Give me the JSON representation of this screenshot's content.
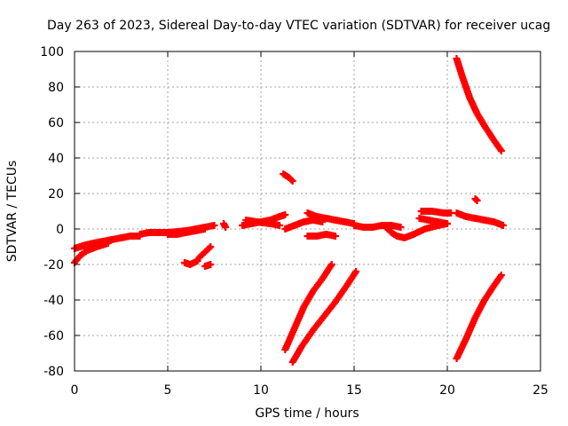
{
  "chart_data": {
    "type": "scatter",
    "title": "Day 263 of 2023, Sidereal Day-to-day VTEC variation (SDTVAR) for receiver ucag",
    "xlabel": "GPS time / hours",
    "ylabel": "SDTVAR / TECUs",
    "xlim": [
      0,
      25
    ],
    "ylim": [
      -80,
      100
    ],
    "xticks": [
      "0",
      "5",
      "10",
      "15",
      "20",
      "25"
    ],
    "yticks": [
      "-80",
      "-60",
      "-40",
      "-20",
      "0",
      "20",
      "40",
      "60",
      "80",
      "100"
    ],
    "grid": true,
    "marker": "+",
    "color": "#ff0000",
    "series": [
      {
        "x": [
          0.0,
          0.3,
          0.6,
          1.0,
          1.5,
          2.0,
          2.5,
          3.0,
          3.5
        ],
        "y": [
          -11,
          -10,
          -9,
          -8,
          -7,
          -6,
          -5,
          -4,
          -4
        ]
      },
      {
        "x": [
          0.0,
          0.3,
          0.7,
          1.2,
          1.8
        ],
        "y": [
          -19,
          -15,
          -12,
          -10,
          -8
        ]
      },
      {
        "x": [
          3.5,
          4.0,
          5.0,
          6.0,
          6.5,
          7.0,
          7.5
        ],
        "y": [
          -3,
          -2,
          -2,
          -1,
          0,
          1,
          2
        ]
      },
      {
        "x": [
          5.0,
          5.5,
          6.0,
          6.5,
          7.0
        ],
        "y": [
          -3,
          -3,
          -2,
          -1,
          0
        ]
      },
      {
        "x": [
          8.0,
          8.1
        ],
        "y": [
          3,
          1
        ]
      },
      {
        "x": [
          9.0,
          9.5,
          10.0,
          10.5,
          11.0,
          11.3
        ],
        "y": [
          2,
          3,
          4,
          5,
          7,
          8
        ]
      },
      {
        "x": [
          9.2,
          9.8,
          10.5,
          11.0
        ],
        "y": [
          5,
          4,
          3,
          2
        ]
      },
      {
        "x": [
          11.2,
          11.5,
          11.7
        ],
        "y": [
          31,
          29,
          27
        ]
      },
      {
        "x": [
          11.3,
          11.8,
          12.3,
          12.8,
          13.3
        ],
        "y": [
          0,
          2,
          4,
          5,
          4
        ]
      },
      {
        "x": [
          12.5,
          13.0,
          13.5,
          14.0,
          14.5,
          15.0
        ],
        "y": [
          9,
          7,
          6,
          5,
          4,
          3
        ]
      },
      {
        "x": [
          12.5,
          13.0,
          13.5,
          14.0
        ],
        "y": [
          -4,
          -4,
          -3,
          -4
        ]
      },
      {
        "x": [
          15.0,
          15.5,
          16.0,
          16.5,
          17.0,
          17.5
        ],
        "y": [
          2,
          1,
          1,
          2,
          2,
          1
        ]
      },
      {
        "x": [
          16.7,
          17.0,
          17.3,
          17.7,
          18.2,
          18.8,
          19.5,
          20.0
        ],
        "y": [
          1,
          -2,
          -4,
          -5,
          -3,
          0,
          2,
          3
        ]
      },
      {
        "x": [
          18.5,
          19.0,
          19.5,
          20.0
        ],
        "y": [
          6,
          5,
          4,
          3
        ]
      },
      {
        "x": [
          18.6,
          19.2,
          19.8,
          20.2
        ],
        "y": [
          10,
          10,
          9,
          9
        ]
      },
      {
        "x": [
          20.5,
          21.0,
          21.5,
          22.0,
          22.5,
          23.0
        ],
        "y": [
          9,
          7,
          6,
          5,
          4,
          2
        ]
      },
      {
        "x": [
          20.5,
          20.8,
          21.2,
          21.6,
          22.0,
          22.5,
          22.9
        ],
        "y": [
          96,
          86,
          74,
          65,
          58,
          50,
          44
        ]
      },
      {
        "x": [
          21.5,
          21.6
        ],
        "y": [
          17,
          16
        ]
      },
      {
        "x": [
          20.5,
          21.0,
          21.5,
          22.0,
          22.5,
          22.9
        ],
        "y": [
          -73,
          -62,
          -50,
          -40,
          -32,
          -26
        ]
      },
      {
        "x": [
          11.3,
          11.8,
          12.3,
          12.8,
          13.3,
          13.8
        ],
        "y": [
          -68,
          -56,
          -44,
          -35,
          -28,
          -20
        ]
      },
      {
        "x": [
          11.7,
          12.2,
          12.8,
          13.4,
          14.0,
          14.6,
          15.1
        ],
        "y": [
          -75,
          -66,
          -57,
          -49,
          -41,
          -32,
          -24
        ]
      },
      {
        "x": [
          5.9,
          6.2,
          6.6
        ],
        "y": [
          -19,
          -20,
          -18
        ]
      },
      {
        "x": [
          6.7,
          7.0,
          7.3
        ],
        "y": [
          -16,
          -13,
          -10
        ]
      },
      {
        "x": [
          7.0,
          7.3
        ],
        "y": [
          -21,
          -20
        ]
      }
    ]
  }
}
